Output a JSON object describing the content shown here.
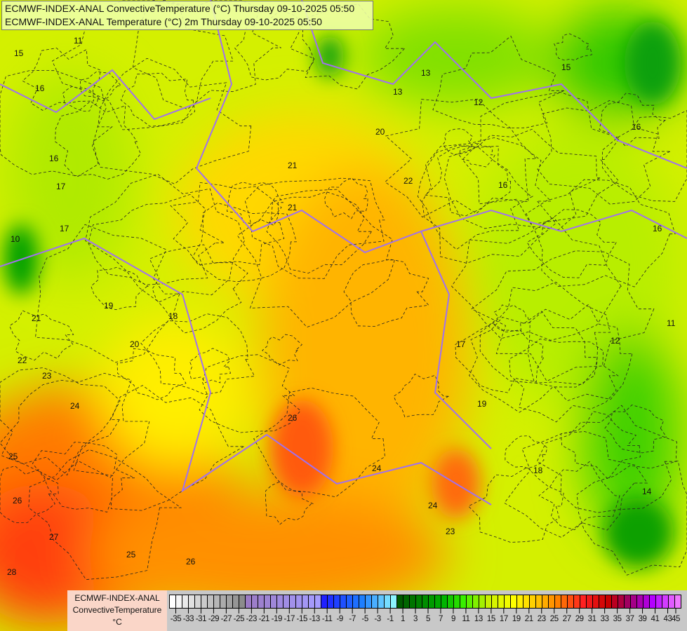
{
  "header": {
    "line1": "ECMWF-INDEX-ANAL ConvectiveTemperature (°C) Thursday 09-10-2025 05:50",
    "line2": "ECMWF-INDEX-ANAL Temperature (°C) 2m Thursday 09-10-2025 05:50"
  },
  "legend": {
    "model": "ECMWF-INDEX-ANAL",
    "parameter": "ConvectiveTemperature",
    "unit": "°C",
    "min": -36,
    "max": 45,
    "step": 1,
    "tick_labels": [
      "-35",
      "-33",
      "-31",
      "-29",
      "-27",
      "-25",
      "-23",
      "-21",
      "-19",
      "-17",
      "-15",
      "-13",
      "-11",
      "-9",
      "-7",
      "-5",
      "-3",
      "-1",
      "1",
      "3",
      "5",
      "7",
      "9",
      "11",
      "13",
      "15",
      "17",
      "19",
      "21",
      "23",
      "25",
      "27",
      "29",
      "31",
      "33",
      "35",
      "37",
      "39",
      "41",
      "43",
      "45"
    ],
    "color_stops": [
      {
        "v": -36,
        "c": "#ffffff"
      },
      {
        "v": -25,
        "c": "#8c8c8c"
      },
      {
        "v": -24,
        "c": "#9b7bc4"
      },
      {
        "v": -13,
        "c": "#a59cff"
      },
      {
        "v": -12,
        "c": "#2020ff"
      },
      {
        "v": -6,
        "c": "#1e7fff"
      },
      {
        "v": -1,
        "c": "#8cf4ff"
      },
      {
        "v": 0,
        "c": "#005a00"
      },
      {
        "v": 7,
        "c": "#00b400"
      },
      {
        "v": 10,
        "c": "#38f000"
      },
      {
        "v": 14,
        "c": "#c8f000"
      },
      {
        "v": 18,
        "c": "#ffff00"
      },
      {
        "v": 22,
        "c": "#ffc000"
      },
      {
        "v": 25,
        "c": "#ff8000"
      },
      {
        "v": 29,
        "c": "#ff2020"
      },
      {
        "v": 33,
        "c": "#c80000"
      },
      {
        "v": 36,
        "c": "#a00060"
      },
      {
        "v": 40,
        "c": "#b400ff"
      },
      {
        "v": 45,
        "c": "#ff96ff"
      }
    ]
  },
  "map": {
    "contour_labels": [
      "16",
      "16",
      "17",
      "17",
      "15",
      "21",
      "21",
      "22",
      "20",
      "13",
      "12",
      "15",
      "16",
      "16",
      "16",
      "18",
      "19",
      "20",
      "21",
      "22",
      "23",
      "24",
      "25",
      "26",
      "27",
      "28",
      "26",
      "25",
      "26",
      "24",
      "23",
      "24",
      "17",
      "19",
      "18",
      "14",
      "12",
      "11",
      "10",
      "11",
      "13"
    ],
    "colors": {
      "border": "#a070f0",
      "river": "#7aa0e0",
      "contour": "#222222"
    }
  }
}
